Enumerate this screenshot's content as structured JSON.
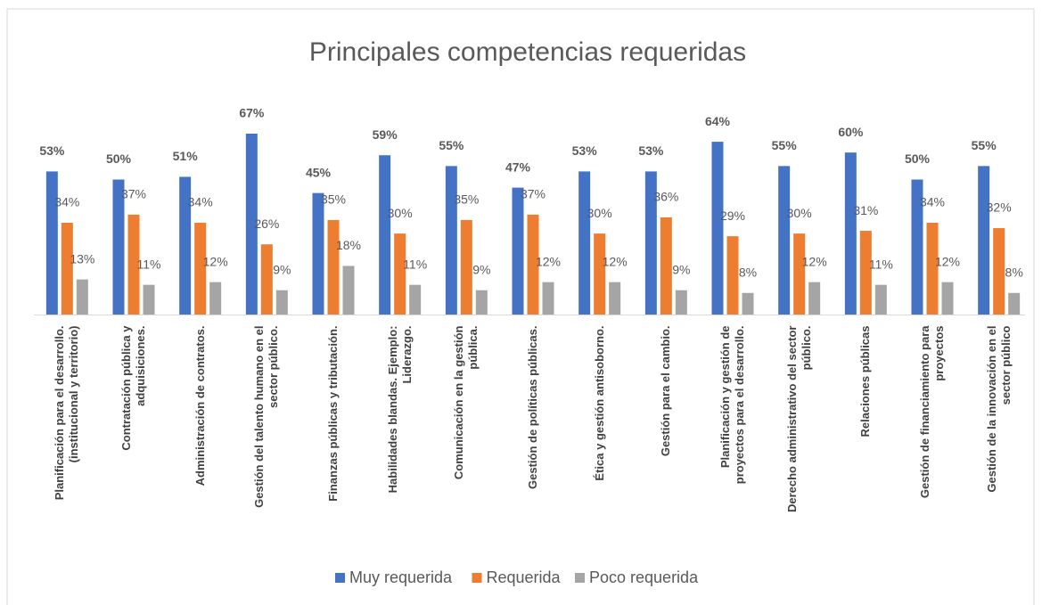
{
  "chart_data": {
    "type": "bar",
    "title": "Principales competencias requeridas",
    "categories": [
      "Planificación para el desarrollo. (institucional y territorio)",
      "Contratación pública y adquisiciones.",
      "Administración de contratos.",
      "Gestión del talento humano en el sector público.",
      "Finanzas públicas y tributación.",
      "Habilidades blandas. Ejemplo: Liderazgo.",
      "Comunicación en la gestión pública.",
      "Gestión de políticas públicas.",
      "Ética y gestión antisoborno.",
      "Gestión para el cambio.",
      "Planificación y gestión de proyectos para el desarrollo.",
      "Derecho administrativo del sector público.",
      "Relaciones públicas",
      "Gestión de financiamiento para proyectos",
      "Gestión de la innovación en el sector público"
    ],
    "series": [
      {
        "name": "Muy requerida",
        "color": "#4472c4",
        "values": [
          53,
          50,
          51,
          67,
          45,
          59,
          55,
          47,
          53,
          53,
          64,
          55,
          60,
          50,
          55
        ],
        "value_labels": [
          "53%",
          "50%",
          "51%",
          "67%",
          "45%",
          "59%",
          "55%",
          "47%",
          "53%",
          "53%",
          "64%",
          "55%",
          "60%",
          "50%",
          "55%"
        ]
      },
      {
        "name": "Requerida",
        "color": "#ed7d31",
        "values": [
          34,
          37,
          34,
          26,
          35,
          30,
          35,
          37,
          30,
          36,
          29,
          30,
          31,
          34,
          32
        ],
        "value_labels": [
          "34%",
          "37%",
          "34%",
          "26%",
          "35%",
          "30%",
          "35%",
          "37%",
          "30%",
          "36%",
          "29%",
          "30%",
          "31%",
          "34%",
          "32%"
        ]
      },
      {
        "name": "Poco requerida",
        "color": "#a5a5a5",
        "values": [
          13,
          11,
          12,
          9,
          18,
          11,
          9,
          12,
          12,
          9,
          8,
          12,
          11,
          12,
          8
        ],
        "value_labels": [
          "13%",
          "11%",
          "12%",
          "9%",
          "18%",
          "11%",
          "9%",
          "12%",
          "12%",
          "9%",
          "8%",
          "12%",
          "11%",
          "12%",
          "8%"
        ]
      }
    ],
    "legend": "bottom"
  }
}
